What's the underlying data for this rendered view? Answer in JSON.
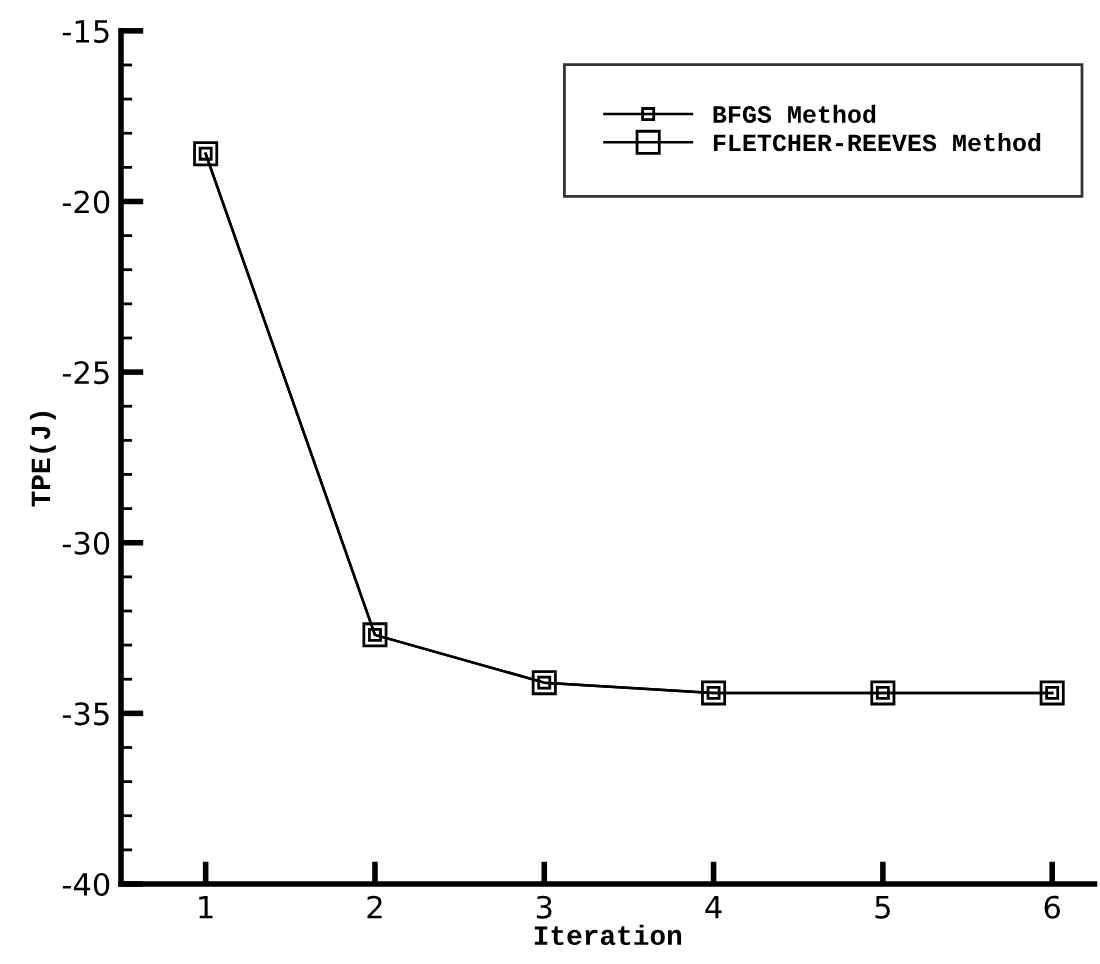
{
  "chart_data": {
    "type": "line",
    "xlabel": "Iteration",
    "ylabel": "TPE(J)",
    "x": [
      1,
      2,
      3,
      4,
      5,
      6
    ],
    "series": [
      {
        "name": "BFGS Method",
        "color": "#000000",
        "values": [
          -18.6,
          -32.7,
          -34.1,
          -34.4,
          -34.4,
          -34.4
        ]
      },
      {
        "name": "FLETCHER-REEVES Method",
        "color": "#000000",
        "values": [
          -18.6,
          -32.7,
          -34.1,
          -34.4,
          -34.4,
          -34.4
        ]
      }
    ],
    "xlim": [
      0.5,
      6.25
    ],
    "xticks": [
      1,
      2,
      3,
      4,
      5,
      6
    ],
    "ylim": [
      -40,
      -15
    ],
    "yticks": [
      -40,
      -35,
      -30,
      -25,
      -20,
      -15
    ],
    "marker": "square",
    "line_style": "solid",
    "legend": "top right",
    "grid": false
  }
}
